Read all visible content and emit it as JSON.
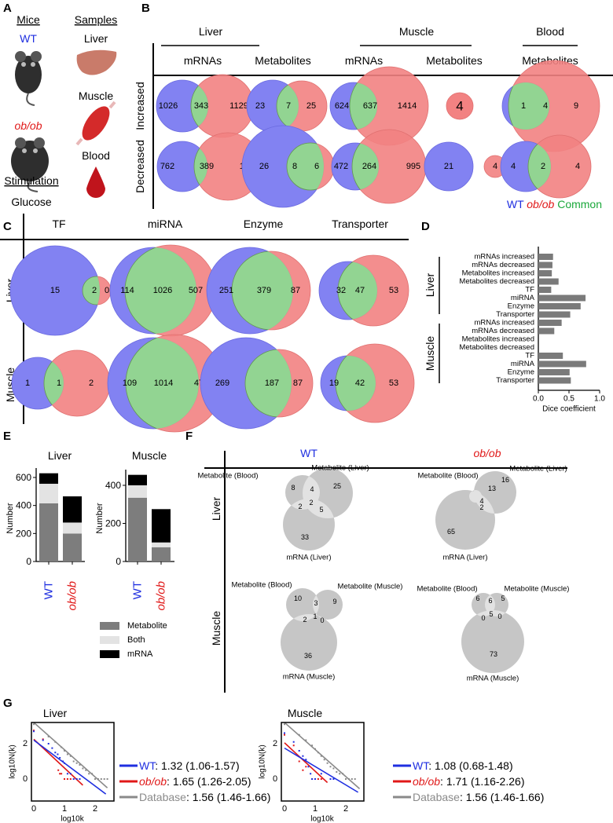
{
  "panel_letters": {
    "a": "A",
    "b": "B",
    "c": "C",
    "d": "D",
    "e": "E",
    "f": "F",
    "g": "G"
  },
  "panel_a": {
    "mice": "Mice",
    "wt": "WT",
    "obob": "ob/ob",
    "stimulation": "Stimulation",
    "glucose": "Glucose",
    "samples": "Samples",
    "liver": "Liver",
    "muscle": "Muscle",
    "blood": "Blood"
  },
  "colors": {
    "wt": "#1f2fe0",
    "obob": "#e01818",
    "common": "#1aa83a",
    "wt_fill": "#8282f2",
    "obob_fill": "#f28282",
    "common_fill": "#92d492",
    "gray": "#c6c6c6",
    "gray_light": "#e2e2e2"
  },
  "panel_b": {
    "groups": [
      "Liver",
      "Muscle",
      "Blood"
    ],
    "subheaders": [
      "mRNAs",
      "Metabolites",
      "mRNAs",
      "Metabolites",
      "Metabolites"
    ],
    "rows": [
      "Increased",
      "Decreased"
    ],
    "venns": [
      {
        "tissue": "Liver",
        "type": "mRNAs",
        "direction": "Increased",
        "values": [
          "1026",
          "343",
          "1129"
        ]
      },
      {
        "tissue": "Liver",
        "type": "Metabolites",
        "direction": "Increased",
        "values": [
          "23",
          "7",
          "25"
        ]
      },
      {
        "tissue": "Muscle",
        "type": "mRNAs",
        "direction": "Increased",
        "values": [
          "624",
          "637",
          "1414"
        ]
      },
      {
        "tissue": "Muscle",
        "type": "Metabolites",
        "direction": "Increased",
        "values": [
          "4"
        ]
      },
      {
        "tissue": "Blood",
        "type": "Metabolites",
        "direction": "Increased",
        "values": [
          "1",
          "4",
          "9"
        ]
      },
      {
        "tissue": "Liver",
        "type": "mRNAs",
        "direction": "Decreased",
        "values": [
          "762",
          "389",
          "1780"
        ]
      },
      {
        "tissue": "Liver",
        "type": "Metabolites",
        "direction": "Decreased",
        "values": [
          "26",
          "8",
          "6"
        ]
      },
      {
        "tissue": "Muscle",
        "type": "mRNAs",
        "direction": "Decreased",
        "values": [
          "472",
          "264",
          "995"
        ]
      },
      {
        "tissue": "Muscle",
        "type": "Metabolites",
        "direction": "Decreased",
        "values": [
          "21",
          "4"
        ]
      },
      {
        "tissue": "Blood",
        "type": "Metabolites",
        "direction": "Decreased",
        "values": [
          "4",
          "2",
          "4"
        ]
      }
    ],
    "legend": {
      "wt": "WT",
      "obob": "ob/ob",
      "common": "Common"
    }
  },
  "panel_c": {
    "columns": [
      "TF",
      "miRNA",
      "Enzyme",
      "Transporter"
    ],
    "rows": [
      "Liver",
      "Muscle"
    ],
    "venns": [
      {
        "tissue": "Liver",
        "type": "TF",
        "values": [
          "15",
          "2",
          "0"
        ]
      },
      {
        "tissue": "Liver",
        "type": "miRNA",
        "values": [
          "114",
          "1026",
          "507"
        ]
      },
      {
        "tissue": "Liver",
        "type": "Enzyme",
        "values": [
          "251",
          "379",
          "87"
        ]
      },
      {
        "tissue": "Liver",
        "type": "Transporter",
        "values": [
          "32",
          "47",
          "53"
        ]
      },
      {
        "tissue": "Muscle",
        "type": "TF",
        "values": [
          "1",
          "1",
          "2"
        ]
      },
      {
        "tissue": "Muscle",
        "type": "miRNA",
        "values": [
          "109",
          "1014",
          "475"
        ]
      },
      {
        "tissue": "Muscle",
        "type": "Enzyme",
        "values": [
          "269",
          "187",
          "87"
        ]
      },
      {
        "tissue": "Muscle",
        "type": "Transporter",
        "values": [
          "19",
          "42",
          "53"
        ]
      }
    ]
  },
  "chart_data": [
    {
      "panel": "D",
      "type": "bar",
      "orientation": "horizontal",
      "groups": [
        "Liver",
        "Muscle"
      ],
      "categories": [
        "mRNAs increased",
        "mRNAs decreased",
        "Metabolites increased",
        "Metabolites decreased",
        "TF",
        "miRNA",
        "Enzyme",
        "Transporter",
        "mRNAs increased",
        "mRNAs decreased",
        "Metabolites increased",
        "Metabolites decreased",
        "TF",
        "miRNA",
        "Enzyme",
        "Transporter"
      ],
      "values": [
        0.24,
        0.23,
        0.22,
        0.33,
        0.21,
        0.77,
        0.69,
        0.52,
        0.38,
        0.26,
        0,
        0,
        0.4,
        0.78,
        0.51,
        0.53
      ],
      "xlabel": "Dice coefficient",
      "xlim": [
        0,
        1.0
      ],
      "xticks": [
        "0.0",
        "0.5",
        "1.0"
      ],
      "color": "#7a7a7a"
    },
    {
      "panel": "E",
      "type": "bar",
      "stacked": true,
      "charts": [
        {
          "title": "Liver",
          "ylabel": "Number",
          "ylim": [
            0,
            660
          ],
          "yticks": [
            "0",
            "200",
            "400",
            "600"
          ],
          "categories": [
            "WT",
            "ob/ob"
          ],
          "series": [
            {
              "name": "Metabolite",
              "values": [
                415,
                200
              ]
            },
            {
              "name": "Both",
              "values": [
                140,
                78
              ]
            },
            {
              "name": "mRNA",
              "values": [
                75,
                187
              ]
            }
          ]
        },
        {
          "title": "Muscle",
          "ylabel": "Number",
          "ylim": [
            0,
            480
          ],
          "yticks": [
            "0",
            "200",
            "400"
          ],
          "categories": [
            "WT",
            "ob/ob"
          ],
          "series": [
            {
              "name": "Metabolite",
              "values": [
                335,
                75
              ]
            },
            {
              "name": "Both",
              "values": [
                65,
                25
              ]
            },
            {
              "name": "mRNA",
              "values": [
                55,
                175
              ]
            }
          ]
        }
      ],
      "legend": [
        "Metabolite",
        "Both",
        "mRNA"
      ],
      "series_colors": [
        "#7d7d7d",
        "#e3e3e3",
        "#000000"
      ]
    },
    {
      "panel": "G",
      "type": "scatter",
      "charts": [
        {
          "title": "Liver",
          "xlabel": "log10k",
          "ylabel": "log10N(k)",
          "xticks": [
            "0",
            "1",
            "2"
          ],
          "yticks": [
            "0",
            "2"
          ],
          "xlim": [
            -0.1,
            2.6
          ],
          "ylim": [
            -1.1,
            3.2
          ],
          "series": [
            {
              "name": "WT",
              "color": "#1f2fe0",
              "exponent": "1.32",
              "ci": "1.06-1.57",
              "fit": [
                [
                  0,
                  2.2
                ],
                [
                  2.35,
                  -0.85
                ]
              ],
              "points": [
                [
                  0,
                  2.7
                ],
                [
                  0.3,
                  2.2
                ],
                [
                  0.48,
                  2.0
                ],
                [
                  0.6,
                  1.75
                ],
                [
                  0.7,
                  1.5
                ],
                [
                  0.78,
                  1.4
                ],
                [
                  0.85,
                  1.2
                ],
                [
                  0.95,
                  1.0
                ],
                [
                  1.0,
                  0.9
                ],
                [
                  1.1,
                  0.3
                ],
                [
                  1.2,
                  0.3
                ],
                [
                  1.3,
                  0
                ],
                [
                  1.4,
                  0
                ],
                [
                  1.5,
                  0
                ]
              ]
            },
            {
              "name": "ob/ob",
              "color": "#e01818",
              "exponent": "1.65",
              "ci": "1.26-2.05",
              "fit": [
                [
                  0,
                  2.25
                ],
                [
                  1.6,
                  -0.35
                ]
              ],
              "points": [
                [
                  0,
                  2.75
                ],
                [
                  0.3,
                  2.25
                ],
                [
                  0.8,
                  0.5
                ],
                [
                  0.85,
                  0.3
                ],
                [
                  0.9,
                  0.3
                ],
                [
                  1.0,
                  0
                ],
                [
                  1.1,
                  0
                ],
                [
                  1.2,
                  0
                ],
                [
                  1.4,
                  0
                ]
              ]
            },
            {
              "name": "Database",
              "color": "#8a8a8a",
              "exponent": "1.56",
              "ci": "1.46-1.66",
              "fit": [
                [
                  0,
                  3.2
                ],
                [
                  2.4,
                  -0.5
                ]
              ],
              "points": [
                [
                  0,
                  3.1
                ],
                [
                  0.48,
                  2.4
                ],
                [
                  0.7,
                  2.1
                ],
                [
                  0.9,
                  1.8
                ],
                [
                  1.0,
                  1.6
                ],
                [
                  1.1,
                  1.4
                ],
                [
                  1.2,
                  1.3
                ],
                [
                  1.3,
                  1.0
                ],
                [
                  1.4,
                  0.9
                ],
                [
                  1.5,
                  0.8
                ],
                [
                  1.6,
                  0.6
                ],
                [
                  1.7,
                  0.5
                ],
                [
                  1.8,
                  0.3
                ],
                [
                  1.9,
                  0.3
                ],
                [
                  2.0,
                  0
                ],
                [
                  2.1,
                  0
                ],
                [
                  2.2,
                  0
                ],
                [
                  2.3,
                  0
                ],
                [
                  2.4,
                  0
                ]
              ]
            }
          ]
        },
        {
          "title": "Muscle",
          "xlabel": "log10k",
          "ylabel": "log10N(k)",
          "xticks": [
            "0",
            "1",
            "2"
          ],
          "yticks": [
            "0",
            "2"
          ],
          "xlim": [
            -0.1,
            2.6
          ],
          "ylim": [
            -1.1,
            3.2
          ],
          "series": [
            {
              "name": "WT",
              "color": "#1f2fe0",
              "exponent": "1.08",
              "ci": "0.68-1.48",
              "fit": [
                [
                  0,
                  1.75
                ],
                [
                  2.4,
                  -0.75
                ]
              ],
              "points": [
                [
                  0,
                  2.6
                ],
                [
                  0.3,
                  2.1
                ],
                [
                  0.48,
                  1.6
                ],
                [
                  0.6,
                  1.3
                ],
                [
                  0.7,
                  1.1
                ],
                [
                  0.78,
                  0.7
                ],
                [
                  0.85,
                  0.3
                ],
                [
                  0.9,
                  0
                ],
                [
                  1.0,
                  0
                ],
                [
                  1.2,
                  0.3
                ],
                [
                  1.5,
                  0
                ],
                [
                  1.6,
                  0
                ]
              ]
            },
            {
              "name": "ob/ob",
              "color": "#e01818",
              "exponent": "1.71",
              "ci": "1.16-2.26",
              "fit": [
                [
                  0,
                  2.05
                ],
                [
                  1.4,
                  -0.2
                ]
              ],
              "points": [
                [
                  0,
                  2.5
                ],
                [
                  0.3,
                  1.9
                ],
                [
                  0.48,
                  1.0
                ],
                [
                  0.6,
                  0.5
                ],
                [
                  0.7,
                  0.7
                ],
                [
                  0.9,
                  0
                ],
                [
                  1.1,
                  0
                ],
                [
                  1.2,
                  0
                ]
              ]
            },
            {
              "name": "Database",
              "color": "#8a8a8a",
              "exponent": "1.56",
              "ci": "1.46-1.66",
              "fit": [
                [
                  0,
                  3.2
                ],
                [
                  2.45,
                  -0.55
                ]
              ],
              "points": [
                [
                  0,
                  3.1
                ],
                [
                  0.48,
                  2.5
                ],
                [
                  0.7,
                  2.2
                ],
                [
                  0.9,
                  1.9
                ],
                [
                  1.0,
                  1.7
                ],
                [
                  1.1,
                  1.5
                ],
                [
                  1.2,
                  1.3
                ],
                [
                  1.3,
                  1.1
                ],
                [
                  1.4,
                  0.9
                ],
                [
                  1.5,
                  0.7
                ],
                [
                  1.6,
                  0.6
                ],
                [
                  1.7,
                  0.4
                ],
                [
                  1.8,
                  0.3
                ],
                [
                  1.9,
                  0.3
                ],
                [
                  2.0,
                  0
                ],
                [
                  2.1,
                  0
                ],
                [
                  2.2,
                  0
                ],
                [
                  2.3,
                  0
                ]
              ]
            }
          ]
        }
      ]
    }
  ],
  "panel_f": {
    "columns": [
      "WT",
      "ob/ob"
    ],
    "rows": [
      "Liver",
      "Muscle"
    ],
    "venns": [
      {
        "genotype": "WT",
        "tissue": "Liver",
        "set_labels": [
          "Metabolite (Blood)",
          "Metabolite (Liver)",
          "mRNA (Liver)"
        ],
        "values": [
          "8",
          "4",
          "25",
          "2",
          "2",
          "5",
          "33"
        ]
      },
      {
        "genotype": "ob/ob",
        "tissue": "Liver",
        "set_labels": [
          "Metabolite (Blood)",
          "Metabolite (Liver)",
          "mRNA (Liver)"
        ],
        "values": [
          "16",
          "13",
          "4",
          "2",
          "65"
        ]
      },
      {
        "genotype": "WT",
        "tissue": "Muscle",
        "set_labels": [
          "Metabolite (Blood)",
          "Metabolite (Muscle)",
          "mRNA (Muscle)"
        ],
        "values": [
          "10",
          "3",
          "9",
          "2",
          "1",
          "0",
          "36"
        ]
      },
      {
        "genotype": "ob/ob",
        "tissue": "Muscle",
        "set_labels": [
          "Metabolite (Blood)",
          "Metabolite (Muscle)",
          "mRNA (Muscle)"
        ],
        "values": [
          "6",
          "6",
          "5",
          "0",
          "5",
          "0",
          "73"
        ]
      }
    ]
  }
}
